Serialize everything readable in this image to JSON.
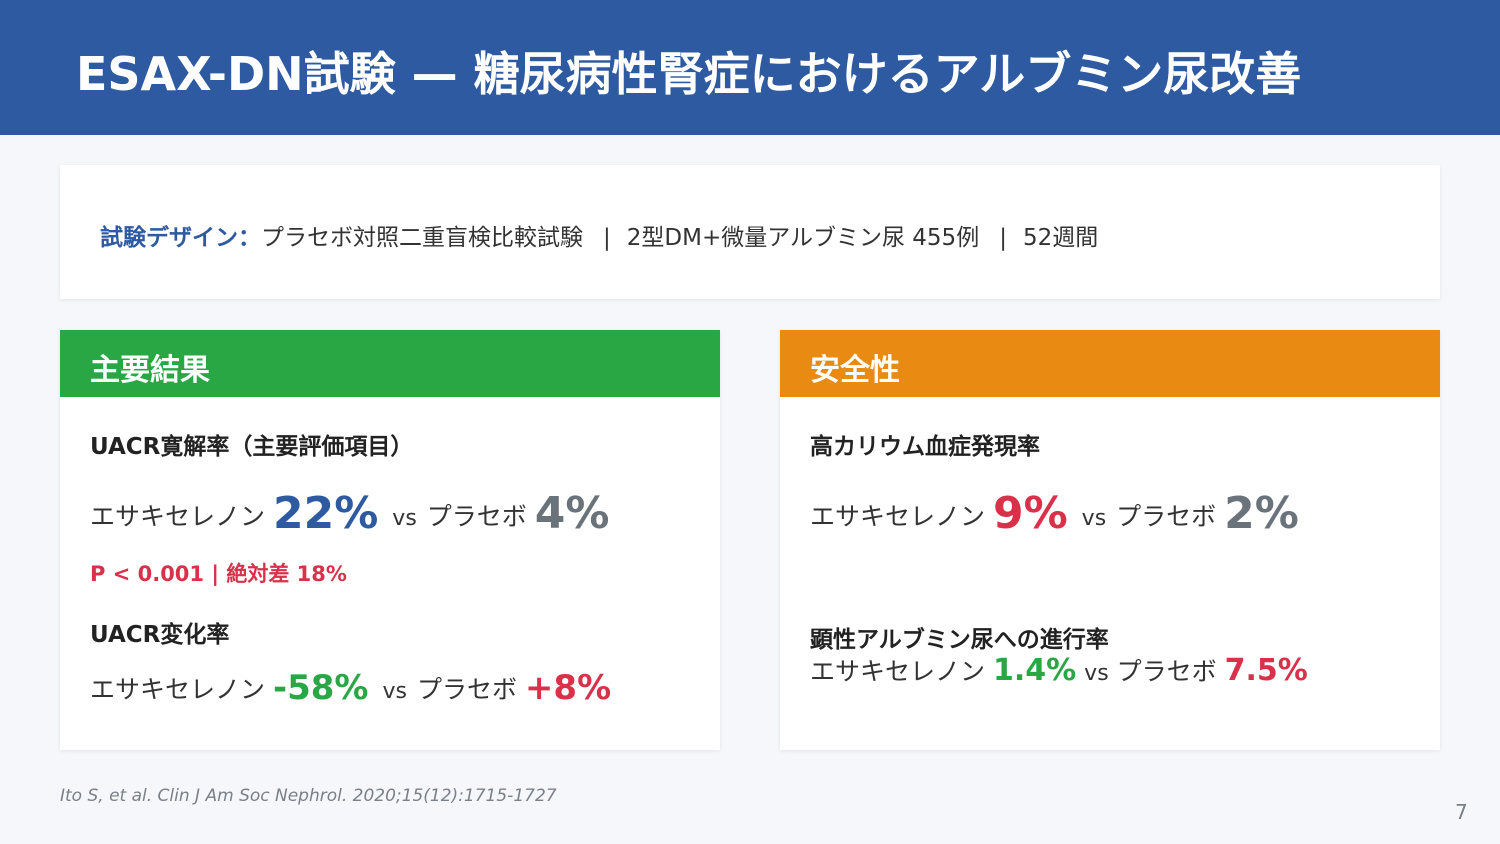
{
  "header": {
    "title": "ESAX-DN試験 — 糖尿病性腎症におけるアルブミン尿改善"
  },
  "design": {
    "label": "試験デザイン：",
    "item1": "プラセボ対照二重盲検比較試験",
    "separator": "|",
    "item2": "2型DM+微量アルブミン尿 455例",
    "item3": "52週間"
  },
  "primary": {
    "heading": "主要結果",
    "uacr_remission": {
      "title": "UACR寛解率（主要評価項目）",
      "drug_label": "エサキセレノン",
      "drug_value": "22%",
      "vs": "vs",
      "placebo_label": "プラセボ",
      "placebo_value": "4%"
    },
    "pvalue": "P < 0.001 | 絶対差 18%",
    "uacr_change": {
      "title": "UACR変化率",
      "drug_label": "エサキセレノン",
      "drug_value": "-58%",
      "vs": "vs",
      "placebo_label": "プラセボ",
      "placebo_value": "+8%"
    }
  },
  "safety": {
    "heading": "安全性",
    "hyperkalemia": {
      "title": "高カリウム血症発現率",
      "drug_label": "エサキセレノン",
      "drug_value": "9%",
      "vs": "vs",
      "placebo_label": "プラセボ",
      "placebo_value": "2%"
    },
    "progression": {
      "title": "顕性アルブミン尿への進行率",
      "drug_label": "エサキセレノン",
      "drug_value": "1.4%",
      "vs": "vs",
      "placebo_label": "プラセボ",
      "placebo_value": "7.5%"
    }
  },
  "footer": {
    "citation": "Ito S, et al. Clin J Am Soc Nephrol. 2020;15(12):1715-1727",
    "page_number": "7"
  },
  "colors": {
    "header_blue": "#2d5aa0",
    "primary_green": "#2aa745",
    "safety_orange": "#e98a12",
    "accent_red": "#d9314a",
    "neutral_gray": "#6b737a"
  }
}
